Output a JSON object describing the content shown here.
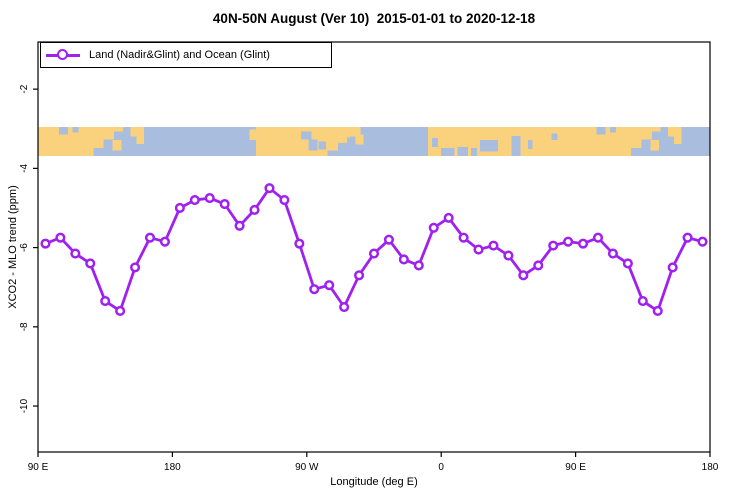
{
  "page": {
    "background": "#ffffff"
  },
  "chart_data": {
    "type": "line",
    "title": "40N-50N August (Ver 10)  2015-01-01 to 2020-12-18",
    "xlabel": "Longitude (deg E)",
    "ylabel": "XCO2 - MLO trend (ppm)",
    "legend": [
      {
        "label": "Land (Nadir&Glint) and Ocean (Glint)",
        "color": "#A020F0",
        "marker": "open-circle"
      }
    ],
    "legend_position": "top-left",
    "grid": false,
    "xlim": [
      90,
      540
    ],
    "ylim": [
      -11.16,
      -0.81
    ],
    "x_ticks": {
      "positions": [
        90,
        180,
        270,
        360,
        450,
        540
      ],
      "labels": [
        "90 E",
        "180",
        "90 W",
        "0",
        "90 E",
        "180"
      ]
    },
    "y_ticks": {
      "positions": [
        -2,
        -4,
        -6,
        -8,
        -10
      ],
      "labels": [
        "-2",
        "-4",
        "-6",
        "-8",
        "-10"
      ]
    },
    "series": [
      {
        "name": "Land (Nadir&Glint) and Ocean (Glint)",
        "color": "#A020F0",
        "marker": "open-circle",
        "x": [
          95,
          105,
          115,
          125,
          135,
          145,
          155,
          165,
          175,
          185,
          195,
          205,
          215,
          225,
          235,
          245,
          255,
          265,
          275,
          285,
          295,
          305,
          315,
          325,
          335,
          345,
          355,
          365,
          375,
          385,
          395,
          405,
          415,
          425,
          435,
          445,
          455,
          465,
          475,
          485,
          495,
          505,
          515,
          525,
          535
        ],
        "y": [
          -5.9,
          -5.75,
          -6.15,
          -6.4,
          -7.35,
          -7.6,
          -6.5,
          -5.75,
          -5.85,
          -5.0,
          -4.8,
          -4.75,
          -4.9,
          -5.45,
          -5.05,
          -4.5,
          -4.8,
          -5.9,
          -7.05,
          -6.95,
          -7.5,
          -6.7,
          -6.15,
          -5.8,
          -6.3,
          -6.45,
          -5.5,
          -5.25,
          -5.75,
          -6.05,
          -5.95,
          -6.2,
          -6.7,
          -6.45,
          -5.95,
          -5.85,
          -5.9,
          -5.75,
          -6.15,
          -6.4,
          -7.35,
          -7.6,
          -6.5,
          -5.75,
          -5.85
        ]
      }
    ],
    "map_band": {
      "description": "land/ocean strip of the 40N-50N latitude band",
      "y_top": -2.96,
      "y_bottom": -3.69,
      "ocean_color": "#A9BDDF",
      "land_color": "#FAD27E",
      "land_segments": [
        [
          90,
          127,
          0,
          1
        ],
        [
          127,
          134,
          0,
          0.72
        ],
        [
          134,
          141,
          0,
          0.42
        ],
        [
          141,
          147,
          0,
          0.15
        ],
        [
          140,
          146,
          0.45,
          0.8
        ],
        [
          152,
          156,
          0,
          0.32
        ],
        [
          156,
          161,
          0,
          0.58
        ],
        [
          231.5,
          236,
          0.08,
          0.45
        ],
        [
          236,
          284,
          0,
          1
        ],
        [
          284,
          291,
          0,
          0.8
        ],
        [
          291,
          299,
          0,
          0.55
        ],
        [
          299,
          306,
          0,
          0.32
        ],
        [
          302.5,
          308,
          0.25,
          0.6
        ],
        [
          351,
          487,
          0,
          1
        ],
        [
          487,
          494,
          0,
          0.72
        ],
        [
          494,
          501,
          0,
          0.42
        ],
        [
          501,
          507,
          0,
          0.15
        ],
        [
          500,
          506,
          0.45,
          0.8
        ],
        [
          512,
          516,
          0,
          0.32
        ],
        [
          516,
          521,
          0,
          0.58
        ]
      ],
      "water_patches": [
        [
          104,
          110,
          0,
          0.25
        ],
        [
          113,
          117,
          0,
          0.18
        ],
        [
          266,
          273,
          0.15,
          0.42
        ],
        [
          271,
          277,
          0.42,
          0.8
        ],
        [
          278,
          283,
          0.5,
          0.78
        ],
        [
          297,
          302,
          0.35,
          0.7
        ],
        [
          354,
          358,
          0.38,
          0.68
        ],
        [
          360,
          369,
          0.72,
          1
        ],
        [
          371,
          378,
          0.68,
          1
        ],
        [
          380,
          384,
          0.72,
          1
        ],
        [
          386,
          398,
          0.45,
          0.85
        ],
        [
          407,
          413,
          0.3,
          1
        ],
        [
          418,
          421,
          0.45,
          0.75
        ],
        [
          434,
          438,
          0.22,
          0.45
        ],
        [
          464,
          470,
          0,
          0.25
        ],
        [
          473,
          477,
          0,
          0.18
        ]
      ]
    }
  }
}
